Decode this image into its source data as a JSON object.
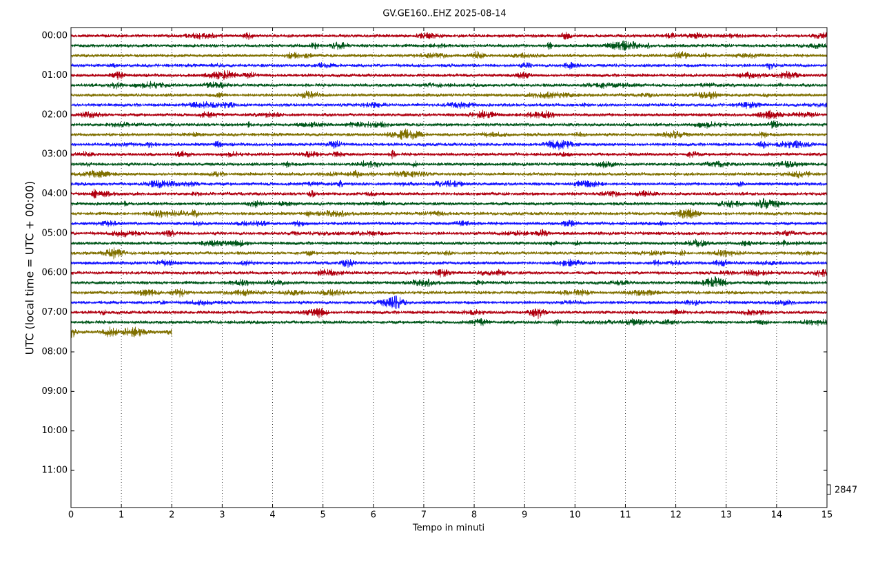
{
  "chart_data": {
    "type": "helicorder",
    "title": "GV.GE160..EHZ 2025-08-14",
    "xlabel": "Tempo in minuti",
    "ylabel": "UTC (local time = UTC + 00:00)",
    "xlim": [
      0,
      15
    ],
    "xticks": [
      0,
      1,
      2,
      3,
      4,
      5,
      6,
      7,
      8,
      9,
      10,
      11,
      12,
      13,
      14,
      15
    ],
    "ylim": [
      -0.21,
      11.94
    ],
    "yticks": [
      {
        "value": 0,
        "label": "00:00"
      },
      {
        "value": 1,
        "label": "01:00"
      },
      {
        "value": 2,
        "label": "02:00"
      },
      {
        "value": 3,
        "label": "03:00"
      },
      {
        "value": 4,
        "label": "04:00"
      },
      {
        "value": 5,
        "label": "05:00"
      },
      {
        "value": 6,
        "label": "06:00"
      },
      {
        "value": 7,
        "label": "07:00"
      },
      {
        "value": 8,
        "label": "08:00"
      },
      {
        "value": 9,
        "label": "09:00"
      },
      {
        "value": 10,
        "label": "10:00"
      },
      {
        "value": 11,
        "label": "11:00"
      }
    ],
    "grid": true,
    "colors": [
      "#b00010",
      "#00561a",
      "#807000",
      "#1414ff"
    ],
    "traces": [
      {
        "hour": 0,
        "end": 15
      },
      {
        "hour": 0.25,
        "end": 15
      },
      {
        "hour": 0.5,
        "end": 15
      },
      {
        "hour": 0.75,
        "end": 15
      },
      {
        "hour": 1,
        "end": 15
      },
      {
        "hour": 1.25,
        "end": 15
      },
      {
        "hour": 1.5,
        "end": 15
      },
      {
        "hour": 1.75,
        "end": 15
      },
      {
        "hour": 2,
        "end": 15
      },
      {
        "hour": 2.25,
        "end": 15
      },
      {
        "hour": 2.5,
        "end": 15
      },
      {
        "hour": 2.75,
        "end": 15
      },
      {
        "hour": 3,
        "end": 15
      },
      {
        "hour": 3.25,
        "end": 15
      },
      {
        "hour": 3.5,
        "end": 15
      },
      {
        "hour": 3.75,
        "end": 15
      },
      {
        "hour": 4,
        "end": 15
      },
      {
        "hour": 4.25,
        "end": 15
      },
      {
        "hour": 4.5,
        "end": 15
      },
      {
        "hour": 4.75,
        "end": 15
      },
      {
        "hour": 5,
        "end": 15
      },
      {
        "hour": 5.25,
        "end": 15
      },
      {
        "hour": 5.5,
        "end": 15
      },
      {
        "hour": 5.75,
        "end": 15
      },
      {
        "hour": 6,
        "end": 15
      },
      {
        "hour": 6.25,
        "end": 15
      },
      {
        "hour": 6.5,
        "end": 15
      },
      {
        "hour": 6.75,
        "end": 15
      },
      {
        "hour": 7,
        "end": 15
      },
      {
        "hour": 7.25,
        "end": 15
      },
      {
        "hour": 7.5,
        "end": 2
      }
    ],
    "scale": 2847
  }
}
